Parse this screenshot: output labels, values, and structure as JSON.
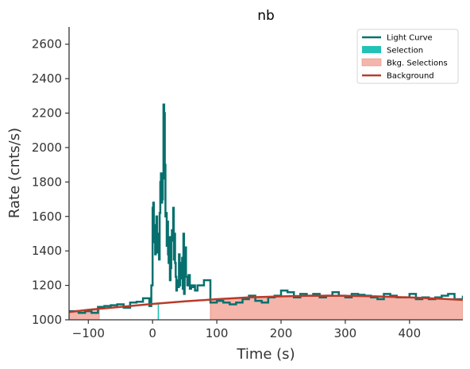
{
  "chart_data": {
    "type": "line",
    "title": "nb",
    "xlabel": "Time (s)",
    "ylabel": "Rate (cnts/s)",
    "xlim": [
      -130,
      483
    ],
    "ylim": [
      1000,
      2700
    ],
    "xticks": [
      -100,
      0,
      100,
      200,
      300,
      400
    ],
    "xtick_labels": [
      "−100",
      "0",
      "100",
      "200",
      "300",
      "400"
    ],
    "yticks": [
      1000,
      1200,
      1400,
      1600,
      1800,
      2000,
      2200,
      2400,
      2600
    ],
    "ytick_labels": [
      "1000",
      "1200",
      "1400",
      "1600",
      "1800",
      "2000",
      "2200",
      "2400",
      "2600"
    ],
    "grid": false,
    "legend_position": "top-right",
    "legend": [
      {
        "label": "Light Curve",
        "kind": "line",
        "color": "#07706e"
      },
      {
        "label": "Selection",
        "kind": "patch",
        "color": "#22c2b6"
      },
      {
        "label": "Bkg. Selections",
        "kind": "patch",
        "color": "#f5b5ab"
      },
      {
        "label": "Background",
        "kind": "line",
        "color": "#b83b2a"
      }
    ],
    "light_curve": {
      "x": [
        -130,
        -115,
        -105,
        -95,
        -85,
        -75,
        -65,
        -55,
        -45,
        -35,
        -25,
        -15,
        -5,
        -2,
        0,
        1,
        2,
        3,
        4,
        5,
        6,
        7,
        8,
        9,
        10,
        11,
        12,
        13,
        14,
        15,
        16,
        17,
        18,
        19,
        20,
        21,
        22,
        23,
        24,
        25,
        26,
        27,
        28,
        29,
        30,
        31,
        32,
        33,
        34,
        35,
        36,
        37,
        38,
        39,
        40,
        41,
        42,
        43,
        44,
        45,
        46,
        47,
        48,
        49,
        50,
        52,
        54,
        56,
        58,
        60,
        62,
        64,
        66,
        70,
        80,
        90,
        100,
        110,
        120,
        130,
        140,
        150,
        160,
        170,
        180,
        190,
        200,
        210,
        220,
        230,
        240,
        250,
        260,
        270,
        280,
        290,
        300,
        310,
        320,
        330,
        340,
        350,
        360,
        370,
        380,
        390,
        400,
        410,
        420,
        430,
        440,
        450,
        460,
        470,
        483
      ],
      "y": [
        1050,
        1040,
        1050,
        1040,
        1075,
        1080,
        1085,
        1090,
        1070,
        1100,
        1105,
        1125,
        1080,
        1200,
        1650,
        1680,
        1450,
        1550,
        1380,
        1400,
        1600,
        1450,
        1390,
        1500,
        1350,
        1620,
        1800,
        1850,
        1680,
        1700,
        1820,
        2250,
        2200,
        1900,
        1600,
        1620,
        1430,
        1570,
        1380,
        1330,
        1480,
        1230,
        1300,
        1460,
        1520,
        1480,
        1650,
        1350,
        1500,
        1330,
        1250,
        1170,
        1200,
        1230,
        1190,
        1380,
        1200,
        1330,
        1240,
        1280,
        1360,
        1180,
        1500,
        1150,
        1420,
        1250,
        1200,
        1260,
        1180,
        1200,
        1190,
        1200,
        1170,
        1200,
        1230,
        1100,
        1110,
        1100,
        1090,
        1100,
        1120,
        1140,
        1110,
        1100,
        1130,
        1140,
        1170,
        1160,
        1130,
        1150,
        1140,
        1150,
        1130,
        1140,
        1160,
        1140,
        1130,
        1150,
        1145,
        1140,
        1130,
        1120,
        1150,
        1140,
        1130,
        1130,
        1150,
        1120,
        1130,
        1120,
        1130,
        1140,
        1150,
        1120,
        1140
      ]
    },
    "background": {
      "x": [
        -130,
        -100,
        -50,
        0,
        50,
        100,
        150,
        200,
        250,
        300,
        350,
        400,
        450,
        483
      ],
      "y": [
        1045,
        1058,
        1075,
        1092,
        1107,
        1120,
        1130,
        1136,
        1140,
        1139,
        1136,
        1130,
        1122,
        1115
      ]
    },
    "selection": {
      "start": 8,
      "end": 10
    },
    "bkg_selections": [
      {
        "start": -130,
        "end": -83
      },
      {
        "start": 90,
        "end": 483
      }
    ]
  }
}
